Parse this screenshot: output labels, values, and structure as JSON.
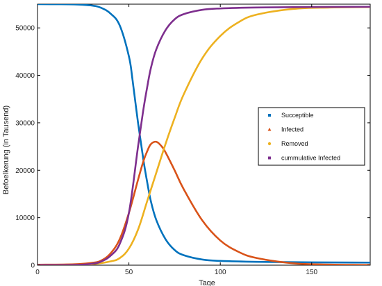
{
  "chart_data": {
    "type": "line",
    "xlabel": "Tage",
    "ylabel": "Befoelkerung (in Tausend)",
    "xlim": [
      0,
      182
    ],
    "ylim": [
      0,
      55000
    ],
    "xticks": [
      0,
      50,
      100,
      150
    ],
    "yticks": [
      0,
      10000,
      20000,
      30000,
      40000,
      50000
    ],
    "grid": false,
    "legend_position": "right",
    "series": [
      {
        "name": "Succeptible",
        "color": "#0072bd",
        "marker": "square",
        "x": [
          0,
          10,
          20,
          30,
          35,
          40,
          45,
          50,
          52,
          55,
          58,
          60,
          62,
          65,
          70,
          75,
          80,
          90,
          100,
          120,
          150,
          182
        ],
        "y": [
          55000,
          54990,
          54950,
          54700,
          54200,
          53000,
          50500,
          44000,
          39000,
          30000,
          22000,
          17500,
          13500,
          9500,
          5500,
          3200,
          2100,
          1200,
          900,
          700,
          600,
          550
        ]
      },
      {
        "name": "Infected",
        "color": "#d95319",
        "marker": "triangle",
        "x": [
          0,
          20,
          30,
          35,
          40,
          45,
          50,
          55,
          58,
          60,
          62,
          65,
          68,
          70,
          75,
          80,
          90,
          100,
          110,
          120,
          140,
          160,
          182
        ],
        "y": [
          100,
          200,
          500,
          1000,
          2500,
          5500,
          11000,
          18000,
          22000,
          24000,
          25500,
          26000,
          25000,
          23800,
          20000,
          16000,
          9500,
          5200,
          2800,
          1500,
          400,
          120,
          40
        ]
      },
      {
        "name": "Removed",
        "color": "#edb120",
        "marker": "circle",
        "x": [
          0,
          20,
          30,
          40,
          45,
          50,
          55,
          60,
          65,
          70,
          75,
          80,
          90,
          100,
          110,
          120,
          140,
          160,
          182
        ],
        "y": [
          0,
          50,
          200,
          800,
          1500,
          3500,
          7500,
          13500,
          19500,
          25500,
          31000,
          36000,
          43500,
          48300,
          51200,
          52800,
          54000,
          54300,
          54400
        ]
      },
      {
        "name": "cummulative Infected",
        "color": "#7e2f8e",
        "marker": "square",
        "x": [
          0,
          20,
          30,
          35,
          40,
          45,
          50,
          55,
          58,
          60,
          62,
          65,
          70,
          75,
          80,
          90,
          100,
          120,
          150,
          182
        ],
        "y": [
          0,
          50,
          300,
          800,
          2000,
          4500,
          11000,
          25000,
          33000,
          37500,
          41500,
          45500,
          49500,
          51800,
          52900,
          53800,
          54100,
          54300,
          54400,
          54450
        ]
      }
    ]
  }
}
